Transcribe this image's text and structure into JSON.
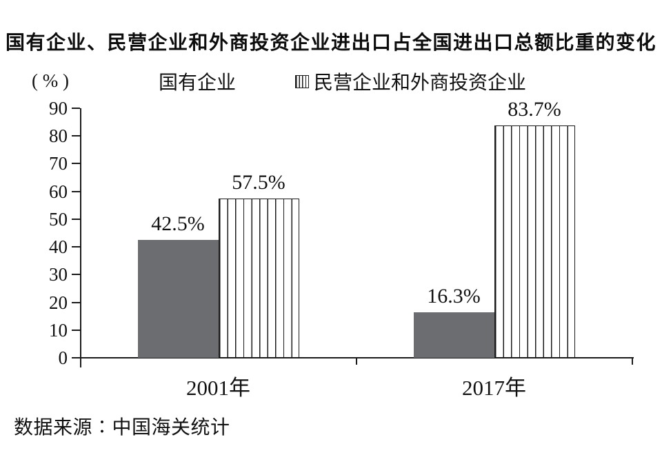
{
  "title": "国有企业、民营企业和外商投资企业进出口占全国进出口总额比重的变化",
  "source_note": "数据来源∶中国海关统计",
  "legend": {
    "items": [
      {
        "label": "国有企业",
        "swatch": "solid-gray-square"
      },
      {
        "label": "民营企业和外商投资企业",
        "swatch": "vertical-stripes-square"
      }
    ]
  },
  "chart_data": {
    "type": "bar",
    "title": "国有企业、民营企业和外商投资企业进出口占全国进出口总额比重的变化",
    "unit": "( % )",
    "categories": [
      "2001年",
      "2017年"
    ],
    "series": [
      {
        "name": "国有企业",
        "style": "solid",
        "values": [
          42.5,
          16.3
        ]
      },
      {
        "name": "民营企业和外商投资企业",
        "style": "striped",
        "values": [
          57.5,
          83.7
        ]
      }
    ],
    "value_labels": [
      [
        "42.5%",
        "57.5%"
      ],
      [
        "16.3%",
        "83.7%"
      ]
    ],
    "ylim": [
      0,
      90
    ],
    "yticks": [
      0,
      10,
      20,
      30,
      40,
      50,
      60,
      70,
      80,
      90
    ],
    "grid": false,
    "legend_position": "top"
  },
  "colors": {
    "bar_solid": "#6c6d70",
    "stripe": "#1a1a1a",
    "axis": "#1a1a1a",
    "text": "#111111"
  }
}
